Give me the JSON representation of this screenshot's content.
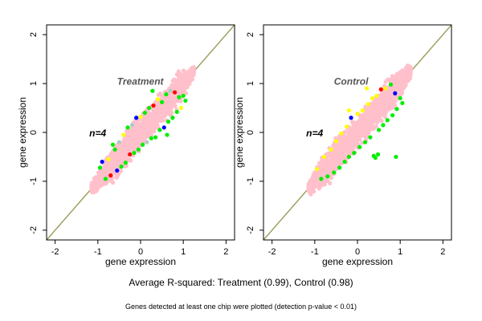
{
  "chart_data": [
    {
      "type": "scatter",
      "title": "Treatment",
      "annotation": "n=4",
      "xlabel": "gene expression",
      "ylabel": "gene expression",
      "xlim": [
        -2.2,
        2.2
      ],
      "ylim": [
        -2.2,
        2.2
      ],
      "xticks": [
        -2,
        -1,
        0,
        1,
        2
      ],
      "yticks": [
        -2,
        -1,
        0,
        1,
        2
      ],
      "grid": false,
      "reference_line": {
        "from": [
          -2.2,
          -2.2
        ],
        "to": [
          2.2,
          2.2
        ],
        "color": "#a0a060"
      },
      "point_colors": {
        "bulk": "#ffc0cb",
        "groups": [
          "#00ee00",
          "#ffff00",
          "#0000ff",
          "#ff0000",
          "#b0c8c8"
        ]
      },
      "cloud": {
        "x_range": [
          -1.15,
          1.25
        ],
        "center_slope": 1.0,
        "spread": 0.22
      },
      "points": [
        {
          "x": -0.95,
          "y": -0.72,
          "c": 0
        },
        {
          "x": -0.82,
          "y": -0.95,
          "c": 0
        },
        {
          "x": -0.75,
          "y": -0.55,
          "c": 1
        },
        {
          "x": -0.7,
          "y": -0.88,
          "c": 3
        },
        {
          "x": -0.6,
          "y": -0.35,
          "c": 0
        },
        {
          "x": -0.55,
          "y": -0.78,
          "c": 2
        },
        {
          "x": -0.5,
          "y": -0.2,
          "c": 4
        },
        {
          "x": -0.45,
          "y": -0.7,
          "c": 0
        },
        {
          "x": -0.4,
          "y": -0.05,
          "c": 1
        },
        {
          "x": -0.35,
          "y": -0.62,
          "c": 0
        },
        {
          "x": -0.3,
          "y": 0.1,
          "c": 0
        },
        {
          "x": -0.25,
          "y": -0.45,
          "c": 3
        },
        {
          "x": -0.2,
          "y": 0.15,
          "c": 4
        },
        {
          "x": -0.15,
          "y": -0.42,
          "c": 0
        },
        {
          "x": -0.1,
          "y": 0.3,
          "c": 2
        },
        {
          "x": -0.05,
          "y": -0.35,
          "c": 0
        },
        {
          "x": 0.0,
          "y": 0.32,
          "c": 1
        },
        {
          "x": 0.05,
          "y": -0.25,
          "c": 0
        },
        {
          "x": 0.1,
          "y": 0.4,
          "c": 0
        },
        {
          "x": 0.15,
          "y": -0.2,
          "c": 4
        },
        {
          "x": 0.2,
          "y": 0.5,
          "c": 0
        },
        {
          "x": 0.25,
          "y": -0.12,
          "c": 0
        },
        {
          "x": 0.3,
          "y": 0.55,
          "c": 3
        },
        {
          "x": 0.35,
          "y": -0.1,
          "c": 0
        },
        {
          "x": 0.4,
          "y": 0.68,
          "c": 1
        },
        {
          "x": 0.45,
          "y": 0.05,
          "c": 0
        },
        {
          "x": 0.5,
          "y": 0.62,
          "c": 0
        },
        {
          "x": 0.55,
          "y": 0.1,
          "c": 2
        },
        {
          "x": 0.6,
          "y": 0.78,
          "c": 0
        },
        {
          "x": 0.65,
          "y": 0.22,
          "c": 0
        },
        {
          "x": 0.7,
          "y": 0.85,
          "c": 4
        },
        {
          "x": 0.75,
          "y": 0.3,
          "c": 0
        },
        {
          "x": 0.8,
          "y": 0.82,
          "c": 3
        },
        {
          "x": 0.85,
          "y": 0.42,
          "c": 0
        },
        {
          "x": 0.9,
          "y": 0.72,
          "c": 0
        },
        {
          "x": 0.95,
          "y": 0.5,
          "c": 1
        },
        {
          "x": 1.0,
          "y": 0.75,
          "c": 0
        },
        {
          "x": 1.05,
          "y": 0.65,
          "c": 0
        },
        {
          "x": -0.65,
          "y": -0.25,
          "c": 0
        },
        {
          "x": 0.28,
          "y": 0.85,
          "c": 0
        },
        {
          "x": 0.62,
          "y": -0.05,
          "c": 0
        },
        {
          "x": -0.9,
          "y": -0.6,
          "c": 2
        }
      ]
    },
    {
      "type": "scatter",
      "title": "Control",
      "annotation": "n=4",
      "xlabel": "gene expression",
      "ylabel": "gene expression",
      "xlim": [
        -2.2,
        2.2
      ],
      "ylim": [
        -2.2,
        2.2
      ],
      "xticks": [
        -2,
        -1,
        0,
        1,
        2
      ],
      "yticks": [
        -2,
        -1,
        0,
        1,
        2
      ],
      "grid": false,
      "reference_line": {
        "from": [
          -2.2,
          -2.2
        ],
        "to": [
          2.2,
          2.2
        ],
        "color": "#a0a060"
      },
      "point_colors": {
        "bulk": "#ffc0cb",
        "groups": [
          "#00ee00",
          "#ffff00",
          "#0000ff",
          "#ff0000",
          "#b0c8c8"
        ]
      },
      "cloud": {
        "x_range": [
          -1.15,
          1.25
        ],
        "center_slope": 1.0,
        "spread": 0.22
      },
      "points": [
        {
          "x": -0.95,
          "y": -0.75,
          "c": 1
        },
        {
          "x": -0.85,
          "y": -0.95,
          "c": 0
        },
        {
          "x": -0.78,
          "y": -0.5,
          "c": 1
        },
        {
          "x": -0.7,
          "y": -0.9,
          "c": 0
        },
        {
          "x": -0.62,
          "y": -0.35,
          "c": 1
        },
        {
          "x": -0.55,
          "y": -0.82,
          "c": 0
        },
        {
          "x": -0.5,
          "y": -0.18,
          "c": 1
        },
        {
          "x": -0.42,
          "y": -0.72,
          "c": 0
        },
        {
          "x": -0.38,
          "y": -0.02,
          "c": 1
        },
        {
          "x": -0.3,
          "y": -0.6,
          "c": 0
        },
        {
          "x": -0.25,
          "y": 0.12,
          "c": 1
        },
        {
          "x": -0.2,
          "y": -0.5,
          "c": 0
        },
        {
          "x": -0.15,
          "y": 0.3,
          "c": 2
        },
        {
          "x": -0.08,
          "y": -0.42,
          "c": 0
        },
        {
          "x": 0.0,
          "y": 0.38,
          "c": 1
        },
        {
          "x": 0.05,
          "y": -0.3,
          "c": 0
        },
        {
          "x": 0.12,
          "y": 0.45,
          "c": 1
        },
        {
          "x": 0.18,
          "y": -0.2,
          "c": 0
        },
        {
          "x": 0.25,
          "y": 0.58,
          "c": 1
        },
        {
          "x": 0.3,
          "y": -0.1,
          "c": 0
        },
        {
          "x": 0.35,
          "y": 0.7,
          "c": 1
        },
        {
          "x": 0.42,
          "y": -0.52,
          "c": 0
        },
        {
          "x": 0.45,
          "y": 0.75,
          "c": 1
        },
        {
          "x": 0.5,
          "y": 0.05,
          "c": 0
        },
        {
          "x": 0.55,
          "y": 0.88,
          "c": 3
        },
        {
          "x": 0.6,
          "y": 0.15,
          "c": 0
        },
        {
          "x": 0.65,
          "y": 0.9,
          "c": 1
        },
        {
          "x": 0.7,
          "y": 0.25,
          "c": 0
        },
        {
          "x": 0.78,
          "y": 0.98,
          "c": 0
        },
        {
          "x": 0.82,
          "y": 0.35,
          "c": 0
        },
        {
          "x": 0.88,
          "y": 0.8,
          "c": 2
        },
        {
          "x": 0.92,
          "y": 0.48,
          "c": 0
        },
        {
          "x": 1.0,
          "y": 0.7,
          "c": 0
        },
        {
          "x": 1.05,
          "y": 0.6,
          "c": 0
        },
        {
          "x": 0.38,
          "y": -0.48,
          "c": 0
        },
        {
          "x": 0.48,
          "y": -0.45,
          "c": 0
        },
        {
          "x": -0.2,
          "y": 0.45,
          "c": 1
        },
        {
          "x": 0.22,
          "y": 0.9,
          "c": 1
        },
        {
          "x": 0.9,
          "y": -0.5,
          "c": 0
        }
      ]
    }
  ],
  "summary": "Average R-squared: Treatment (0.99), Control (0.98)",
  "footnote": "Genes detected at least one chip were plotted (detection p-value < 0.01)"
}
